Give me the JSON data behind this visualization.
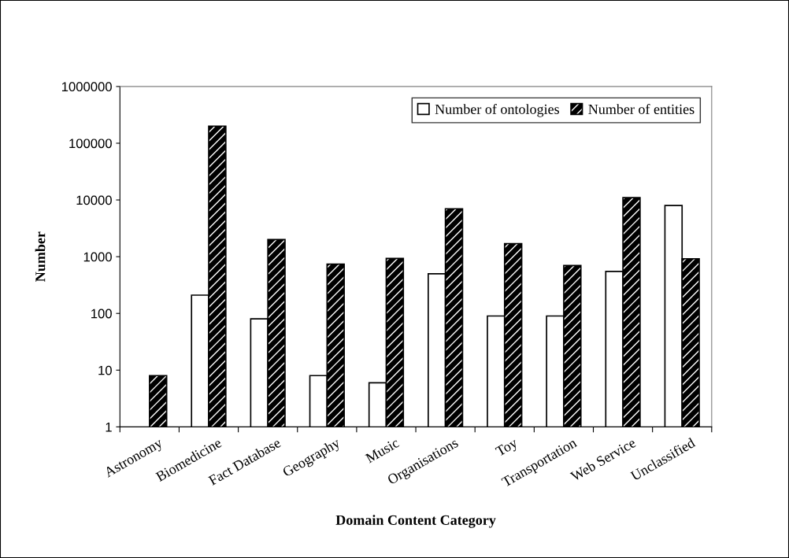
{
  "chart_data": {
    "type": "bar",
    "xlabel": "Domain Content Category",
    "ylabel": "Number",
    "categories": [
      "Astronomy",
      "Biomedicine",
      "Fact Database",
      "Geography",
      "Music",
      "Organisations",
      "Toy",
      "Transportation",
      "Web Service",
      "Unclassified"
    ],
    "series": [
      {
        "name": "Number of ontologies",
        "color": "#ffffff",
        "values": [
          null,
          210,
          80,
          8,
          6,
          500,
          90,
          90,
          550,
          8000
        ]
      },
      {
        "name": "Number of entities",
        "color": "#000000",
        "values": [
          8,
          200000,
          2000,
          740,
          930,
          7000,
          1700,
          700,
          11000,
          920
        ]
      }
    ],
    "log": true,
    "ylim": [
      1,
      1000000
    ],
    "yticks": [
      1,
      10,
      100,
      1000,
      10000,
      100000,
      1000000
    ],
    "grid": false,
    "legend": "top right"
  }
}
